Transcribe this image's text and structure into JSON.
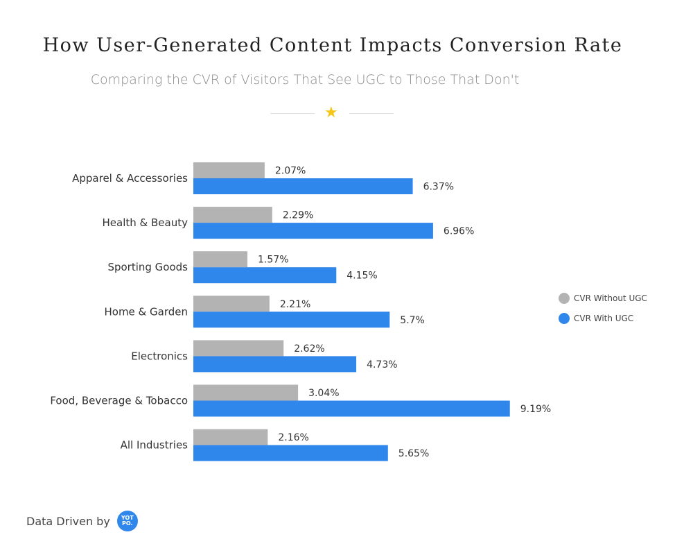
{
  "chart_data": {
    "type": "bar",
    "orientation": "horizontal",
    "title": "How User-Generated Content Impacts Conversion Rate",
    "subtitle": "Comparing the CVR of Visitors That See UGC to Those That Don't",
    "categories": [
      "Apparel & Accessories",
      "Health & Beauty",
      "Sporting Goods",
      "Home & Garden",
      "Electronics",
      "Food, Beverage & Tobacco",
      "All Industries"
    ],
    "series": [
      {
        "name": "CVR Without UGC",
        "color": "#b3b3b3",
        "values": [
          2.07,
          2.29,
          1.57,
          2.21,
          2.62,
          3.04,
          2.16
        ],
        "labels": [
          "2.07%",
          "2.29%",
          "1.57%",
          "2.21%",
          "2.62%",
          "3.04%",
          "2.16%"
        ]
      },
      {
        "name": "CVR With UGC",
        "color": "#2f86eb",
        "values": [
          6.37,
          6.96,
          4.15,
          5.7,
          4.73,
          9.19,
          5.65
        ],
        "labels": [
          "6.37%",
          "6.96%",
          "4.15%",
          "5.7%",
          "4.73%",
          "9.19%",
          "5.65%"
        ]
      }
    ],
    "xlim": [
      0,
      10
    ],
    "grid": false,
    "legend": "right"
  },
  "decoration": {
    "star_icon": "star-icon",
    "star_color": "#f5c518"
  },
  "footer": {
    "text": "Data Driven by",
    "logo_text": "YOTPO."
  }
}
